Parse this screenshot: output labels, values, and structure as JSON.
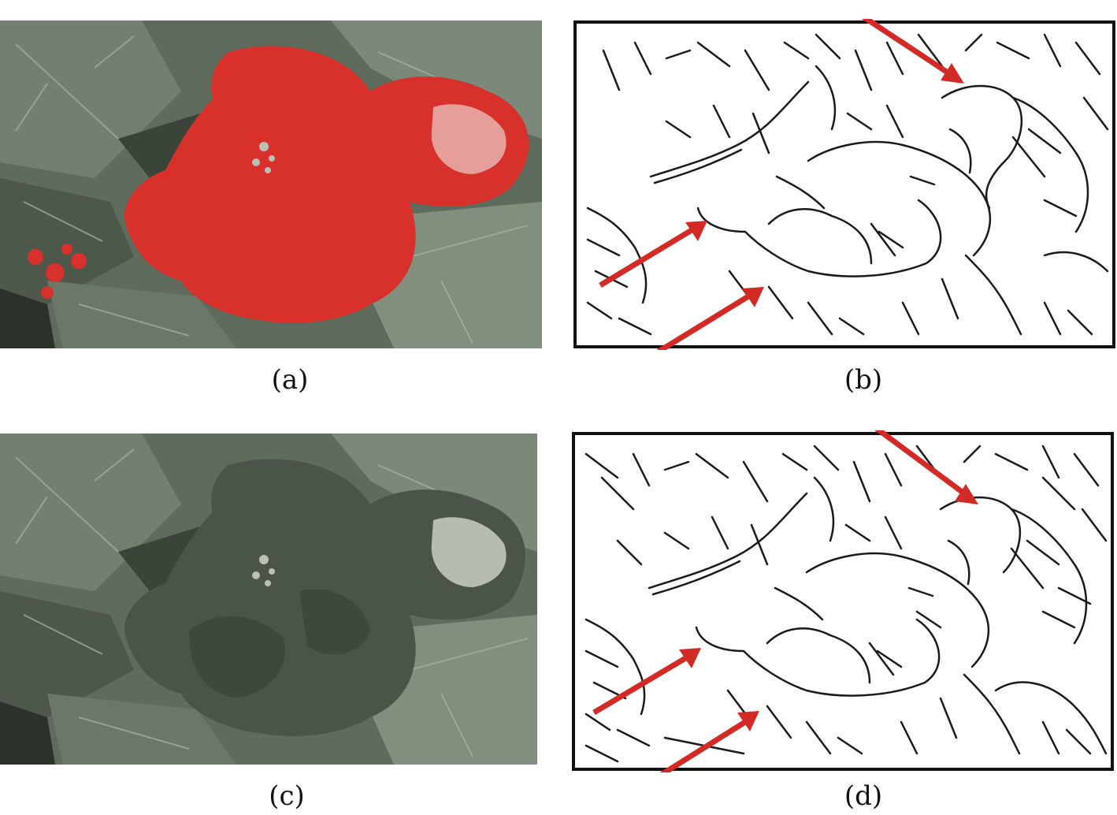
{
  "figure": {
    "panels": [
      {
        "id": "a",
        "caption": "(a)",
        "kind": "photo-red-overlay"
      },
      {
        "id": "b",
        "caption": "(b)",
        "kind": "edge-map"
      },
      {
        "id": "c",
        "caption": "(c)",
        "kind": "photo-grayscale"
      },
      {
        "id": "d",
        "caption": "(d)",
        "kind": "edge-map"
      }
    ],
    "colors": {
      "foliage_base": "#5f6b5c",
      "foliage_dark": "#3d463b",
      "foliage_light": "#8e9a89",
      "highlight_red": "#d8302a",
      "arrow_red": "#d42a26",
      "edge_line": "#1a1a1a",
      "frame": "#111111"
    }
  }
}
